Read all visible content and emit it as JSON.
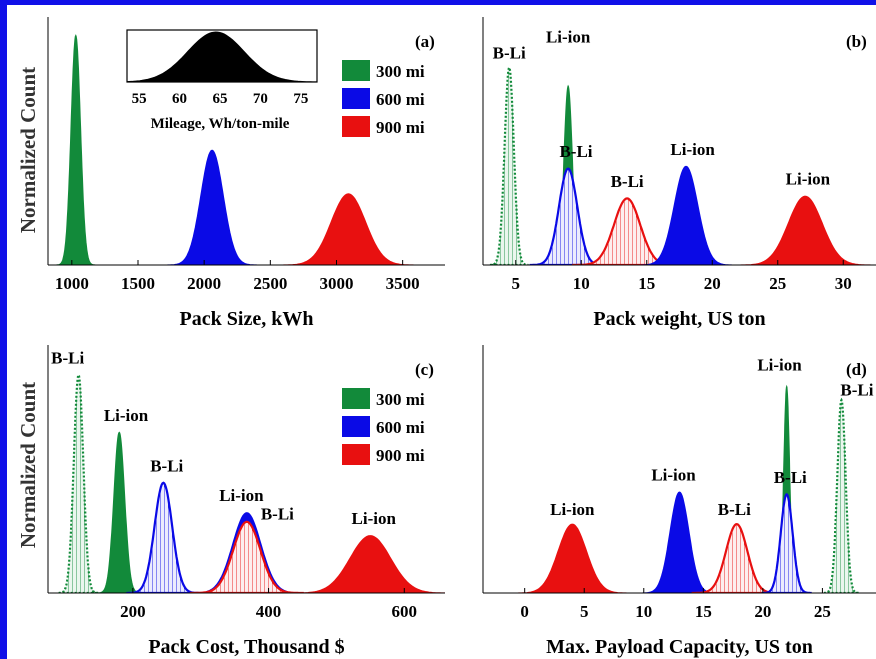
{
  "figure": {
    "ylabel": "Normalized Count",
    "frame_color": "#1010e8",
    "colors": {
      "300 mi": "#128a3a",
      "600 mi": "#0a0ae6",
      "900 mi": "#e81010"
    }
  },
  "chart_data": [
    {
      "panel": "(a)",
      "type": "area",
      "xlabel": "Pack Size, kWh",
      "xlim": [
        820,
        3820
      ],
      "ylim": [
        0,
        1.08
      ],
      "xticks": [
        1000,
        1500,
        2000,
        2500,
        3000,
        3500
      ],
      "legend": {
        "placement": "right",
        "entries": [
          "300 mi",
          "600 mi",
          "900 mi"
        ]
      },
      "series": [
        {
          "name": "300 mi",
          "style": "solid",
          "mean": 1030,
          "sd": 36,
          "peak": 1.0,
          "color": "#128a3a"
        },
        {
          "name": "600 mi",
          "style": "solid",
          "mean": 2060,
          "sd": 85,
          "peak": 0.5,
          "color": "#0a0ae6"
        },
        {
          "name": "900 mi",
          "style": "solid",
          "mean": 3090,
          "sd": 130,
          "peak": 0.31,
          "color": "#e81010"
        }
      ],
      "inset": {
        "type": "area",
        "xlabel": "Mileage, Wh/ton-mile",
        "xlim": [
          53.5,
          77
        ],
        "xticks": [
          55,
          60,
          65,
          70,
          75
        ],
        "series": [
          {
            "mean": 64.5,
            "sd": 3.5,
            "peak": 1.0,
            "color": "#000000"
          }
        ]
      }
    },
    {
      "panel": "(b)",
      "type": "area",
      "xlabel": "Pack weight, US ton",
      "xlim": [
        2.5,
        32.5
      ],
      "ylim": [
        0,
        1.08
      ],
      "xticks": [
        5,
        10,
        15,
        20,
        25,
        30
      ],
      "series": [
        {
          "name": "300 mi",
          "label": "B-Li",
          "style": "dotted",
          "mean": 4.5,
          "sd": 0.35,
          "peak": 0.86,
          "color": "#128a3a"
        },
        {
          "name": "300 mi",
          "label": "Li-ion",
          "style": "solid",
          "mean": 9.0,
          "sd": 0.32,
          "peak": 0.78,
          "color": "#128a3a"
        },
        {
          "name": "600 mi",
          "label": "B-Li",
          "style": "dotted",
          "mean": 9.0,
          "sd": 0.7,
          "peak": 0.42,
          "color": "#0a0ae6"
        },
        {
          "name": "900 mi",
          "label": "B-Li",
          "style": "dotted",
          "mean": 13.5,
          "sd": 1.0,
          "peak": 0.29,
          "color": "#e81010"
        },
        {
          "name": "600 mi",
          "label": "Li-ion",
          "style": "solid",
          "mean": 18.0,
          "sd": 0.9,
          "peak": 0.43,
          "color": "#0a0ae6"
        },
        {
          "name": "900 mi",
          "label": "Li-ion",
          "style": "solid",
          "mean": 27.1,
          "sd": 1.3,
          "peak": 0.3,
          "color": "#e81010"
        }
      ],
      "annotations": [
        {
          "text": "B-Li",
          "x": 4.5,
          "y": 0.9
        },
        {
          "text": "Li-ion",
          "x": 9.0,
          "y": 0.97
        },
        {
          "text": "B-Li",
          "x": 9.6,
          "y": 0.47
        },
        {
          "text": "B-Li",
          "x": 13.5,
          "y": 0.34
        },
        {
          "text": "Li-ion",
          "x": 18.5,
          "y": 0.48
        },
        {
          "text": "Li-ion",
          "x": 27.3,
          "y": 0.35
        }
      ]
    },
    {
      "panel": "(c)",
      "type": "area",
      "xlabel": "Pack Cost, Thousand $",
      "xlim": [
        75,
        660
      ],
      "ylim": [
        0,
        1.08
      ],
      "xticks": [
        200,
        400,
        600
      ],
      "legend": {
        "placement": "right",
        "entries": [
          "300 mi",
          "600 mi",
          "900 mi"
        ]
      },
      "series": [
        {
          "name": "300 mi",
          "label": "B-Li",
          "style": "dotted",
          "mean": 120,
          "sd": 7,
          "peak": 0.95,
          "color": "#128a3a"
        },
        {
          "name": "300 mi",
          "label": "Li-ion",
          "style": "solid",
          "mean": 180,
          "sd": 8,
          "peak": 0.7,
          "color": "#128a3a"
        },
        {
          "name": "600 mi",
          "label": "B-Li",
          "style": "dotted",
          "mean": 245,
          "sd": 13,
          "peak": 0.48,
          "color": "#0a0ae6"
        },
        {
          "name": "600 mi",
          "label": "Li-ion",
          "style": "solid",
          "mean": 368,
          "sd": 21,
          "peak": 0.35,
          "color": "#0a0ae6"
        },
        {
          "name": "900 mi",
          "label": "B-Li",
          "style": "dotted",
          "mean": 368,
          "sd": 20,
          "peak": 0.31,
          "color": "#e81010"
        },
        {
          "name": "900 mi",
          "label": "Li-ion",
          "style": "solid",
          "mean": 550,
          "sd": 30,
          "peak": 0.25,
          "color": "#e81010"
        }
      ],
      "annotations": [
        {
          "text": "B-Li",
          "x": 104,
          "y": 1.0
        },
        {
          "text": "Li-ion",
          "x": 190,
          "y": 0.75
        },
        {
          "text": "B-Li",
          "x": 250,
          "y": 0.53
        },
        {
          "text": "Li-ion",
          "x": 360,
          "y": 0.4
        },
        {
          "text": "B-Li",
          "x": 413,
          "y": 0.32
        },
        {
          "text": "Li-ion",
          "x": 555,
          "y": 0.3
        }
      ]
    },
    {
      "panel": "(d)",
      "type": "area",
      "xlabel": "Max. Payload Capacity, US ton",
      "xlim": [
        -3.5,
        29.5
      ],
      "ylim": [
        0,
        1.08
      ],
      "xticks": [
        0,
        5,
        10,
        15,
        20,
        25
      ],
      "series": [
        {
          "name": "900 mi",
          "label": "Li-ion",
          "style": "solid",
          "mean": 4.0,
          "sd": 1.2,
          "peak": 0.3,
          "color": "#e81010"
        },
        {
          "name": "600 mi",
          "label": "Li-ion",
          "style": "solid",
          "mean": 13.0,
          "sd": 0.8,
          "peak": 0.44,
          "color": "#0a0ae6"
        },
        {
          "name": "900 mi",
          "label": "B-Li",
          "style": "dotted",
          "mean": 17.8,
          "sd": 0.9,
          "peak": 0.3,
          "color": "#e81010"
        },
        {
          "name": "300 mi",
          "label": "Li-ion",
          "style": "solid",
          "mean": 22.0,
          "sd": 0.25,
          "peak": 0.9,
          "color": "#128a3a"
        },
        {
          "name": "600 mi",
          "label": "B-Li",
          "style": "dotted",
          "mean": 22.0,
          "sd": 0.5,
          "peak": 0.43,
          "color": "#0a0ae6"
        },
        {
          "name": "300 mi",
          "label": "B-Li",
          "style": "dotted",
          "mean": 26.6,
          "sd": 0.35,
          "peak": 0.84,
          "color": "#128a3a"
        }
      ],
      "annotations": [
        {
          "text": "Li-ion",
          "x": 4.0,
          "y": 0.34
        },
        {
          "text": "Li-ion",
          "x": 12.5,
          "y": 0.49
        },
        {
          "text": "B-Li",
          "x": 17.6,
          "y": 0.34
        },
        {
          "text": "Li-ion",
          "x": 21.4,
          "y": 0.97
        },
        {
          "text": "B-Li",
          "x": 22.3,
          "y": 0.48
        },
        {
          "text": "B-Li",
          "x": 27.9,
          "y": 0.86
        }
      ]
    }
  ]
}
